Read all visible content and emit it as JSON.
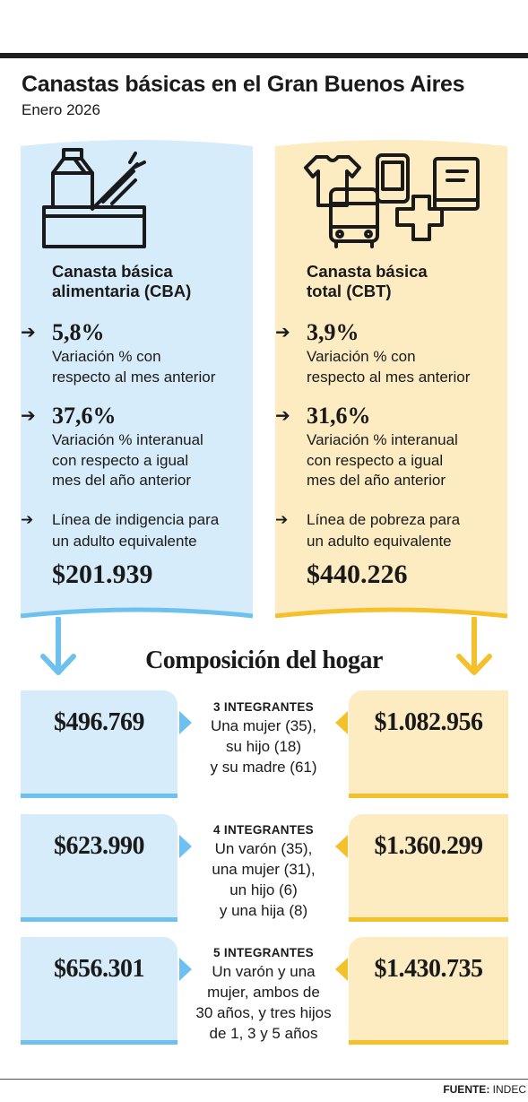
{
  "header": {
    "title": "Canastas básicas en el Gran Buenos Aires",
    "subtitle": "Enero 2026"
  },
  "colors": {
    "cba_bg": "#d6ecfa",
    "cba_accent": "#6ec1ee",
    "cbt_bg": "#fdebc1",
    "cbt_accent": "#f4c12a",
    "ink": "#1a1a1a"
  },
  "cba": {
    "icon": "grocery-basket-icon",
    "title_line1": "Canasta básica",
    "title_line2": "alimentaria (CBA)",
    "monthly_pct": "5,8%",
    "monthly_desc_1": "Variación % con",
    "monthly_desc_2": "respecto al mes anterior",
    "yearly_pct": "37,6%",
    "yearly_desc_1": "Variación % interanual",
    "yearly_desc_2": "con respecto a igual",
    "yearly_desc_3": "mes del año anterior",
    "line_desc_1": "Línea de indigencia para",
    "line_desc_2": "un adulto equivalente",
    "line_value": "$201.939"
  },
  "cbt": {
    "icon": "goods-and-services-icon",
    "title_line1": "Canasta básica",
    "title_line2": "total (CBT)",
    "monthly_pct": "3,9%",
    "monthly_desc_1": "Variación % con",
    "monthly_desc_2": "respecto al mes anterior",
    "yearly_pct": "31,6%",
    "yearly_desc_1": "Variación % interanual",
    "yearly_desc_2": "con respecto a igual",
    "yearly_desc_3": "mes del año anterior",
    "line_desc_1": "Línea de pobreza para",
    "line_desc_2": "un adulto equivalente",
    "line_value": "$440.226"
  },
  "section": {
    "title": "Composición del hogar"
  },
  "households": [
    {
      "cba": "$496.769",
      "cbt": "$1.082.956",
      "heading": "3 INTEGRANTES",
      "line1": "Una mujer (35),",
      "line2": "su hijo (18)",
      "line3": "y su madre (61)",
      "line4": ""
    },
    {
      "cba": "$623.990",
      "cbt": "$1.360.299",
      "heading": "4 INTEGRANTES",
      "line1": "Un varón (35),",
      "line2": "una mujer (31),",
      "line3": "un hijo (6)",
      "line4": "y una hija (8)"
    },
    {
      "cba": "$656.301",
      "cbt": "$1.430.735",
      "heading": "5 INTEGRANTES",
      "line1": "Un varón y una",
      "line2": "mujer, ambos de",
      "line3": "30 años, y tres hijos",
      "line4": "de 1, 3 y 5 años"
    }
  ],
  "footer": {
    "label": "FUENTE:",
    "source": "INDEC"
  }
}
